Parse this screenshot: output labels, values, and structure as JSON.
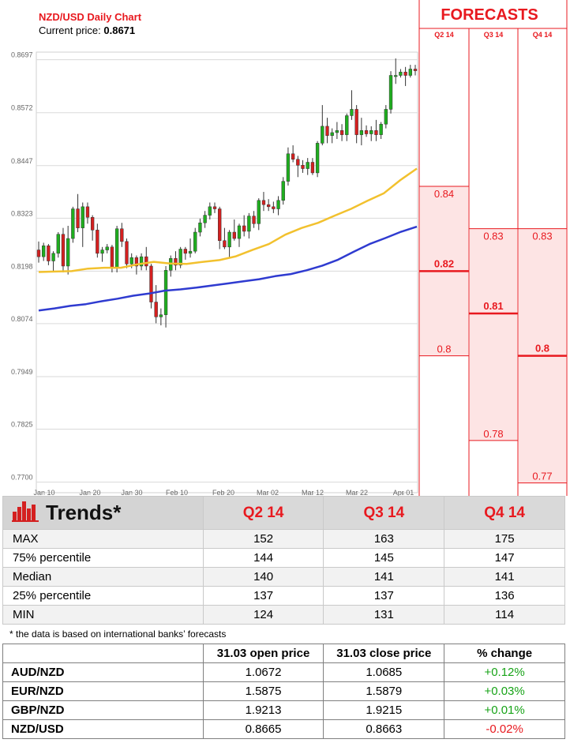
{
  "header": {
    "title": "NZD/USD Daily Chart",
    "current_price_label": "Current price:",
    "current_price": "0.8671"
  },
  "forecasts": {
    "title": "FORECASTS",
    "columns": [
      "Q2 14",
      "Q3 14",
      "Q4 14"
    ],
    "values": [
      {
        "quarter": "Q2 14",
        "max": 0.84,
        "median": 0.82,
        "min": 0.8,
        "max_label": "0.84",
        "median_label": "0.82",
        "min_label": "0.8"
      },
      {
        "quarter": "Q3 14",
        "max": 0.83,
        "median": 0.81,
        "min": 0.78,
        "max_label": "0.83",
        "median_label": "0.81",
        "min_label": "0.78"
      },
      {
        "quarter": "Q4 14",
        "max": 0.83,
        "median": 0.8,
        "min": 0.77,
        "max_label": "0.83",
        "median_label": "0.8",
        "min_label": "0.77"
      }
    ]
  },
  "colors": {
    "up": "#1fae1f",
    "down": "#d42020",
    "ma_short": "#f2c12e",
    "ma_long": "#2f3bd0",
    "accent": "#e8191f",
    "forecast_fill": "#fde4e4"
  },
  "chart_data": {
    "type": "candlestick",
    "title": "NZD/USD Daily Chart",
    "ylim": [
      0.7675,
      0.8715
    ],
    "y_ticks": [
      "0.8697",
      "0.8572",
      "0.8447",
      "0.8323",
      "0.8198",
      "0.8074",
      "0.7949",
      "0.7825",
      "0.7700"
    ],
    "x_ticks": [
      "Jan 10",
      "Jan 20",
      "Jan 30",
      "Feb 10",
      "Feb 20",
      "Mar 02",
      "Mar 12",
      "Mar 22",
      "Apr 01"
    ],
    "grid": true,
    "candles": [
      {
        "o": 0.8248,
        "h": 0.8268,
        "l": 0.8218,
        "c": 0.8232
      },
      {
        "o": 0.8232,
        "h": 0.8265,
        "l": 0.8222,
        "c": 0.8258
      },
      {
        "o": 0.8258,
        "h": 0.8262,
        "l": 0.8212,
        "c": 0.8222
      },
      {
        "o": 0.8222,
        "h": 0.8245,
        "l": 0.8195,
        "c": 0.824
      },
      {
        "o": 0.824,
        "h": 0.829,
        "l": 0.823,
        "c": 0.8285
      },
      {
        "o": 0.8285,
        "h": 0.83,
        "l": 0.8195,
        "c": 0.821
      },
      {
        "o": 0.821,
        "h": 0.8305,
        "l": 0.819,
        "c": 0.8275
      },
      {
        "o": 0.8275,
        "h": 0.835,
        "l": 0.8265,
        "c": 0.8345
      },
      {
        "o": 0.8345,
        "h": 0.838,
        "l": 0.829,
        "c": 0.83
      },
      {
        "o": 0.83,
        "h": 0.836,
        "l": 0.8255,
        "c": 0.835
      },
      {
        "o": 0.835,
        "h": 0.836,
        "l": 0.831,
        "c": 0.8325
      },
      {
        "o": 0.8325,
        "h": 0.833,
        "l": 0.827,
        "c": 0.8295
      },
      {
        "o": 0.8295,
        "h": 0.831,
        "l": 0.823,
        "c": 0.824
      },
      {
        "o": 0.824,
        "h": 0.8255,
        "l": 0.822,
        "c": 0.8248
      },
      {
        "o": 0.8248,
        "h": 0.8262,
        "l": 0.824,
        "c": 0.8255
      },
      {
        "o": 0.8255,
        "h": 0.826,
        "l": 0.8195,
        "c": 0.8205
      },
      {
        "o": 0.8205,
        "h": 0.8305,
        "l": 0.8195,
        "c": 0.8298
      },
      {
        "o": 0.8298,
        "h": 0.8312,
        "l": 0.8255,
        "c": 0.8268
      },
      {
        "o": 0.8268,
        "h": 0.8275,
        "l": 0.8205,
        "c": 0.8215
      },
      {
        "o": 0.8215,
        "h": 0.824,
        "l": 0.8205,
        "c": 0.823
      },
      {
        "o": 0.823,
        "h": 0.8235,
        "l": 0.819,
        "c": 0.821
      },
      {
        "o": 0.821,
        "h": 0.824,
        "l": 0.82,
        "c": 0.8232
      },
      {
        "o": 0.8232,
        "h": 0.8255,
        "l": 0.82,
        "c": 0.821
      },
      {
        "o": 0.821,
        "h": 0.8215,
        "l": 0.811,
        "c": 0.8125
      },
      {
        "o": 0.8125,
        "h": 0.8165,
        "l": 0.8075,
        "c": 0.809
      },
      {
        "o": 0.809,
        "h": 0.811,
        "l": 0.807,
        "c": 0.8095
      },
      {
        "o": 0.8095,
        "h": 0.821,
        "l": 0.8065,
        "c": 0.82
      },
      {
        "o": 0.82,
        "h": 0.8235,
        "l": 0.8185,
        "c": 0.8228
      },
      {
        "o": 0.8228,
        "h": 0.8245,
        "l": 0.82,
        "c": 0.8212
      },
      {
        "o": 0.8212,
        "h": 0.8255,
        "l": 0.8205,
        "c": 0.825
      },
      {
        "o": 0.825,
        "h": 0.8255,
        "l": 0.8225,
        "c": 0.824
      },
      {
        "o": 0.824,
        "h": 0.8275,
        "l": 0.823,
        "c": 0.8245
      },
      {
        "o": 0.8245,
        "h": 0.83,
        "l": 0.824,
        "c": 0.829
      },
      {
        "o": 0.829,
        "h": 0.8322,
        "l": 0.828,
        "c": 0.8312
      },
      {
        "o": 0.8312,
        "h": 0.834,
        "l": 0.83,
        "c": 0.833
      },
      {
        "o": 0.833,
        "h": 0.836,
        "l": 0.832,
        "c": 0.835
      },
      {
        "o": 0.835,
        "h": 0.836,
        "l": 0.8335,
        "c": 0.8345
      },
      {
        "o": 0.8345,
        "h": 0.835,
        "l": 0.825,
        "c": 0.827
      },
      {
        "o": 0.827,
        "h": 0.83,
        "l": 0.825,
        "c": 0.8255
      },
      {
        "o": 0.8255,
        "h": 0.8295,
        "l": 0.823,
        "c": 0.829
      },
      {
        "o": 0.829,
        "h": 0.832,
        "l": 0.827,
        "c": 0.8275
      },
      {
        "o": 0.8275,
        "h": 0.831,
        "l": 0.8255,
        "c": 0.8305
      },
      {
        "o": 0.8305,
        "h": 0.833,
        "l": 0.828,
        "c": 0.8292
      },
      {
        "o": 0.8292,
        "h": 0.8335,
        "l": 0.8275,
        "c": 0.8328
      },
      {
        "o": 0.8328,
        "h": 0.834,
        "l": 0.83,
        "c": 0.831
      },
      {
        "o": 0.831,
        "h": 0.837,
        "l": 0.8295,
        "c": 0.8365
      },
      {
        "o": 0.8365,
        "h": 0.8385,
        "l": 0.834,
        "c": 0.8355
      },
      {
        "o": 0.8355,
        "h": 0.8368,
        "l": 0.834,
        "c": 0.835
      },
      {
        "o": 0.835,
        "h": 0.8362,
        "l": 0.8335,
        "c": 0.8345
      },
      {
        "o": 0.8345,
        "h": 0.8375,
        "l": 0.833,
        "c": 0.8365
      },
      {
        "o": 0.8365,
        "h": 0.842,
        "l": 0.8355,
        "c": 0.841
      },
      {
        "o": 0.841,
        "h": 0.849,
        "l": 0.84,
        "c": 0.8475
      },
      {
        "o": 0.8475,
        "h": 0.8495,
        "l": 0.8455,
        "c": 0.8462
      },
      {
        "o": 0.8462,
        "h": 0.847,
        "l": 0.842,
        "c": 0.8448
      },
      {
        "o": 0.8448,
        "h": 0.846,
        "l": 0.843,
        "c": 0.844
      },
      {
        "o": 0.844,
        "h": 0.8465,
        "l": 0.8425,
        "c": 0.8455
      },
      {
        "o": 0.8455,
        "h": 0.8465,
        "l": 0.8425,
        "c": 0.843
      },
      {
        "o": 0.843,
        "h": 0.8505,
        "l": 0.842,
        "c": 0.85
      },
      {
        "o": 0.85,
        "h": 0.859,
        "l": 0.8495,
        "c": 0.854
      },
      {
        "o": 0.854,
        "h": 0.856,
        "l": 0.85,
        "c": 0.8518
      },
      {
        "o": 0.8518,
        "h": 0.8535,
        "l": 0.85,
        "c": 0.8525
      },
      {
        "o": 0.8525,
        "h": 0.855,
        "l": 0.851,
        "c": 0.853
      },
      {
        "o": 0.853,
        "h": 0.8545,
        "l": 0.8505,
        "c": 0.852
      },
      {
        "o": 0.852,
        "h": 0.857,
        "l": 0.8505,
        "c": 0.8565
      },
      {
        "o": 0.8565,
        "h": 0.8625,
        "l": 0.8555,
        "c": 0.858
      },
      {
        "o": 0.858,
        "h": 0.859,
        "l": 0.85,
        "c": 0.852
      },
      {
        "o": 0.852,
        "h": 0.856,
        "l": 0.8495,
        "c": 0.853
      },
      {
        "o": 0.853,
        "h": 0.8542,
        "l": 0.8515,
        "c": 0.8522
      },
      {
        "o": 0.8522,
        "h": 0.854,
        "l": 0.8505,
        "c": 0.853
      },
      {
        "o": 0.853,
        "h": 0.8555,
        "l": 0.8505,
        "c": 0.852
      },
      {
        "o": 0.852,
        "h": 0.855,
        "l": 0.851,
        "c": 0.8545
      },
      {
        "o": 0.8545,
        "h": 0.859,
        "l": 0.8535,
        "c": 0.858
      },
      {
        "o": 0.858,
        "h": 0.867,
        "l": 0.857,
        "c": 0.866
      },
      {
        "o": 0.866,
        "h": 0.87,
        "l": 0.864,
        "c": 0.866
      },
      {
        "o": 0.866,
        "h": 0.8675,
        "l": 0.8655,
        "c": 0.8668
      },
      {
        "o": 0.8668,
        "h": 0.868,
        "l": 0.8635,
        "c": 0.866
      },
      {
        "o": 0.866,
        "h": 0.8685,
        "l": 0.8655,
        "c": 0.8675
      },
      {
        "o": 0.8675,
        "h": 0.8685,
        "l": 0.866,
        "c": 0.8671
      }
    ],
    "series": [
      {
        "values": [
          0.8196,
          0.8197,
          0.8198,
          0.8204,
          0.8206,
          0.8206,
          0.8214,
          0.822,
          0.8216,
          0.8215,
          0.822,
          0.8224,
          0.8233,
          0.8248,
          0.8262,
          0.8284,
          0.83,
          0.8312,
          0.8329,
          0.8345,
          0.8364,
          0.8382,
          0.8413,
          0.844
        ]
      },
      {
        "values": [
          0.8105,
          0.811,
          0.8116,
          0.812,
          0.8127,
          0.8133,
          0.814,
          0.8145,
          0.8152,
          0.8155,
          0.8159,
          0.8164,
          0.8169,
          0.8174,
          0.8179,
          0.8186,
          0.8191,
          0.82,
          0.8211,
          0.8225,
          0.8244,
          0.8262,
          0.8276,
          0.8291,
          0.8303
        ]
      }
    ]
  },
  "trends": {
    "title": "Trends*",
    "columns": [
      "Q2 14",
      "Q3 14",
      "Q4 14"
    ],
    "rows": [
      {
        "label": "MAX",
        "values": [
          "152",
          "163",
          "175"
        ]
      },
      {
        "label": "75% percentile",
        "values": [
          "144",
          "145",
          "147"
        ]
      },
      {
        "label": "Median",
        "values": [
          "140",
          "141",
          "141"
        ]
      },
      {
        "label": "25% percentile",
        "values": [
          "137",
          "137",
          "136"
        ]
      },
      {
        "label": "MIN",
        "values": [
          "124",
          "131",
          "114"
        ]
      }
    ],
    "note": "* the data is based on international banks’ forecasts"
  },
  "prices": {
    "headers": [
      "31.03 open price",
      "31.03 close price",
      "% change"
    ],
    "rows": [
      {
        "pair": "AUD/NZD",
        "open": "1.0672",
        "close": "1.0685",
        "change": "+0.12%",
        "direction": "up"
      },
      {
        "pair": "EUR/NZD",
        "open": "1.5875",
        "close": "1.5879",
        "change": "+0.03%",
        "direction": "up"
      },
      {
        "pair": "GBP/NZD",
        "open": "1.9213",
        "close": "1.9215",
        "change": "+0.01%",
        "direction": "up"
      },
      {
        "pair": "NZD/USD",
        "open": "0.8665",
        "close": "0.8663",
        "change": "-0.02%",
        "direction": "down"
      }
    ]
  }
}
